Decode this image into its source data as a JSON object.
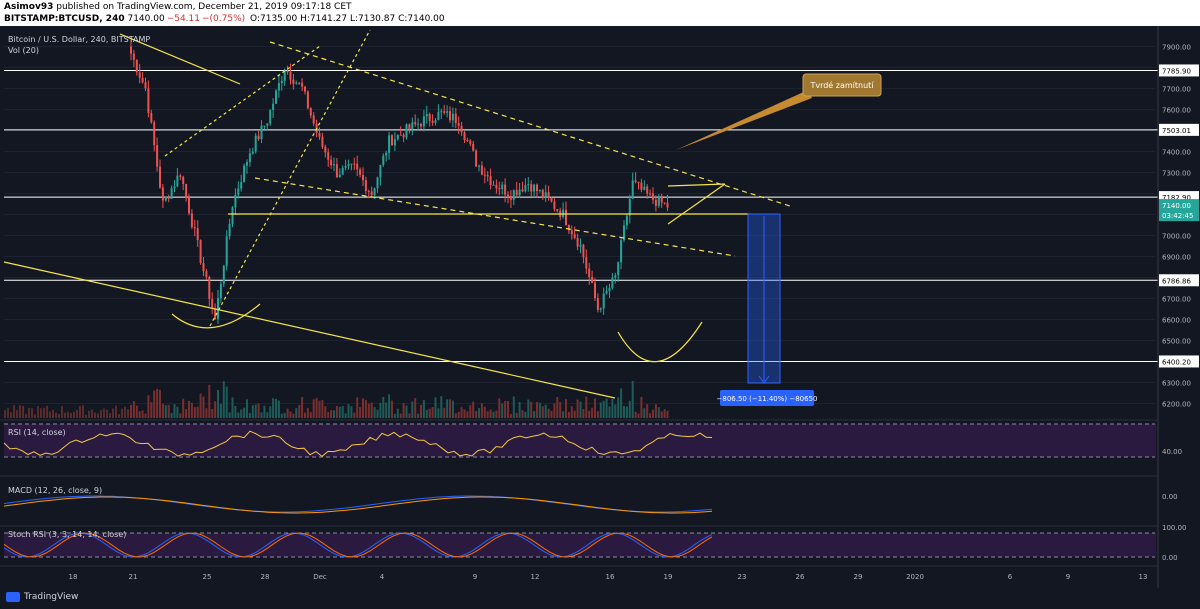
{
  "header": {
    "line1_author": "Asimov93",
    "line1_rest": "published on TradingView.com, December 21, 2019 09:17:18 CET",
    "symbol": "BITSTAMP:BTCUSD, 240",
    "last": "7140.00",
    "change": "−(0.75%)",
    "change_abs": "−54.11",
    "ohlc": "O:7135.00 H:7141.27 L:7130.87 C:7140.00"
  },
  "legend": {
    "title": "Bitcoin / U.S. Dollar, 240, BITSTAMP",
    "vol": "Vol (20)",
    "rsi": "RSI (14, close)",
    "macd": "MACD (12, 26, close, 9)",
    "stoch": "Stoch RSI (3, 3, 14, 14, close)"
  },
  "annotation": {
    "callout": "Tvrdé zamítnutí",
    "measure": "−806.50 (−11.40%) −80650"
  },
  "footer": {
    "brand": "TradingView"
  },
  "colors": {
    "background": "#131722",
    "up": "#26a69a",
    "down": "#ef5350",
    "drawing": "#f5e44a",
    "hline": "#ffffff",
    "callout": "#a07830",
    "measure": "#2962ff",
    "panel": "#2a1a3f"
  },
  "chart_data": {
    "type": "candlestick",
    "title": "Bitcoin / U.S. Dollar, 240, BITSTAMP",
    "price_axis_labels": [
      "7900.00",
      "7800.00",
      "7700.00",
      "7600.00",
      "7500.00",
      "7400.00",
      "7300.00",
      "7200.00",
      "7100.00",
      "7000.00",
      "6900.00",
      "6800.00",
      "6700.00",
      "6600.00",
      "6500.00",
      "6400.00",
      "6300.00",
      "6200.00"
    ],
    "ylim": [
      6150,
      7950
    ],
    "horizontal_levels": [
      "7785.90",
      "7503.01",
      "7182.90",
      "6786.86",
      "6400.20"
    ],
    "current_price": "7140.00",
    "countdown": "03:42:45",
    "x_tick_labels": [
      "18",
      "21",
      "25",
      "28",
      "Dec",
      "4",
      "9",
      "12",
      "16",
      "19",
      "23",
      "26",
      "29",
      "2020",
      "6",
      "9",
      "13"
    ],
    "price_path": [
      {
        "date": "Nov 20",
        "close": 7900
      },
      {
        "date": "Nov 21",
        "close": 7700
      },
      {
        "date": "Nov 22",
        "close": 7150
      },
      {
        "date": "Nov 23",
        "close": 7300
      },
      {
        "date": "Nov 24",
        "close": 6950
      },
      {
        "date": "Nov 25",
        "close": 6600
      },
      {
        "date": "Nov 26",
        "close": 7150
      },
      {
        "date": "Nov 27",
        "close": 7400
      },
      {
        "date": "Nov 28",
        "close": 7550
      },
      {
        "date": "Nov 29",
        "close": 7800
      },
      {
        "date": "Nov 30",
        "close": 7700
      },
      {
        "date": "Dec 1",
        "close": 7450
      },
      {
        "date": "Dec 2",
        "close": 7300
      },
      {
        "date": "Dec 3",
        "close": 7320
      },
      {
        "date": "Dec 4",
        "close": 7200
      },
      {
        "date": "Dec 5",
        "close": 7450
      },
      {
        "date": "Dec 6",
        "close": 7500
      },
      {
        "date": "Dec 7",
        "close": 7550
      },
      {
        "date": "Dec 8",
        "close": 7580
      },
      {
        "date": "Dec 9",
        "close": 7550
      },
      {
        "date": "Dec 10",
        "close": 7350
      },
      {
        "date": "Dec 11",
        "close": 7250
      },
      {
        "date": "Dec 12",
        "close": 7200
      },
      {
        "date": "Dec 13",
        "close": 7250
      },
      {
        "date": "Dec 14",
        "close": 7180
      },
      {
        "date": "Dec 15",
        "close": 7100
      },
      {
        "date": "Dec 16",
        "close": 6950
      },
      {
        "date": "Dec 17",
        "close": 6650
      },
      {
        "date": "Dec 18",
        "close": 6800
      },
      {
        "date": "Dec 19",
        "close": 7250
      },
      {
        "date": "Dec 20",
        "close": 7180
      },
      {
        "date": "Dec 21",
        "close": 7140
      }
    ],
    "rsi_level": "40.00",
    "macd_level": "0.00",
    "stoch_levels": [
      "100.00",
      "0.00"
    ]
  }
}
